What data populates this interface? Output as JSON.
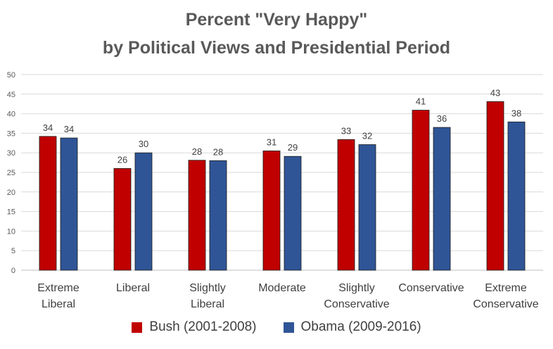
{
  "chart_data": {
    "type": "bar",
    "title_lines": [
      "Percent \"Very Happy\"",
      "by Political Views and Presidential Period"
    ],
    "categories": [
      [
        "Extreme",
        "Liberal"
      ],
      [
        "Liberal"
      ],
      [
        "Slightly",
        "Liberal"
      ],
      [
        "Moderate"
      ],
      [
        "Slightly",
        "Conservative"
      ],
      [
        "Conservative"
      ],
      [
        "Extreme",
        "Conservative"
      ]
    ],
    "series": [
      {
        "name": "Bush (2001-2008)",
        "color": "#C00000",
        "values": [
          34.2,
          26.0,
          28.1,
          30.5,
          33.4,
          40.9,
          43.1
        ],
        "labels": [
          "34",
          "26",
          "28",
          "31",
          "33",
          "41",
          "43"
        ]
      },
      {
        "name": "Obama (2009-2016)",
        "color": "#2F5597",
        "values": [
          33.8,
          30.0,
          28.0,
          29.1,
          32.1,
          36.5,
          37.9
        ],
        "labels": [
          "34",
          "30",
          "28",
          "29",
          "32",
          "36",
          "38"
        ]
      }
    ],
    "ylim": [
      0,
      50
    ],
    "yticks": [
      "0",
      "5",
      "10",
      "15",
      "20",
      "25",
      "30",
      "35",
      "40",
      "45",
      "50"
    ],
    "grid": true,
    "legend_position": "bottom"
  }
}
